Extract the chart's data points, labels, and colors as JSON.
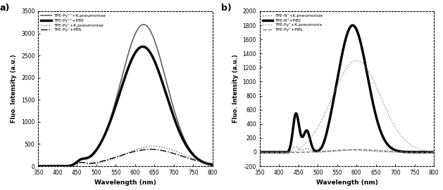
{
  "panel_a": {
    "title": "a)",
    "xlabel": "Wavelength (nm)",
    "ylabel": "Fluo. Intensity (a.u.)",
    "xlim": [
      350,
      800
    ],
    "ylim": [
      0,
      3500
    ],
    "yticks": [
      0,
      500,
      1000,
      1500,
      2000,
      2500,
      3000,
      3500
    ],
    "xticks": [
      350,
      400,
      450,
      500,
      550,
      600,
      650,
      700,
      750,
      800
    ],
    "xticklabels": [
      "350",
      "400",
      "450",
      "500",
      "550",
      "600",
      "650",
      "700",
      "750",
      "800"
    ],
    "legend": [
      {
        "label": "TPE-Py⁺⁺+K.pneumoniae",
        "lw": 1.2,
        "color": "#606060",
        "ls": "solid"
      },
      {
        "label": "TPE-Py⁺⁺+PBS",
        "lw": 2.5,
        "color": "#000000",
        "ls": "solid"
      },
      {
        "label": "TPE-Py⁺+K.pneumoniae",
        "lw": 1.0,
        "color": "#606060",
        "ls": "dotted"
      },
      {
        "label": "TPE-Py⁺+PBS",
        "lw": 1.0,
        "color": "#000000",
        "ls": "dashdot"
      }
    ]
  },
  "panel_b": {
    "title": "b)",
    "xlabel": "Wavelength (nm)",
    "ylabel": "Fluo. Intensity (a.u.)",
    "xlim": [
      350,
      800
    ],
    "ylim": [
      -200,
      2000
    ],
    "yticks": [
      -200,
      0,
      200,
      400,
      600,
      800,
      1000,
      1200,
      1400,
      1600,
      1800,
      2000
    ],
    "xticks": [
      350,
      400,
      450,
      500,
      550,
      600,
      650,
      700,
      750,
      800
    ],
    "xticklabels": [
      "350",
      "400",
      "450",
      "500",
      "550",
      "600",
      "650",
      "700",
      "750",
      "800"
    ],
    "legend": [
      {
        "label": "TPE-N⁺+K.pneumoniae",
        "lw": 1.0,
        "color": "#606060",
        "ls": "dotted"
      },
      {
        "label": "TPE-N⁺+PBS",
        "lw": 2.5,
        "color": "#000000",
        "ls": "solid"
      },
      {
        "label": "TPE-Py⁺+K.pneumonia",
        "lw": 1.0,
        "color": "#909090",
        "ls": "dotted"
      },
      {
        "label": "TPE-Py⁺+PBS",
        "lw": 1.0,
        "color": "#707070",
        "ls": "dashed"
      }
    ]
  }
}
